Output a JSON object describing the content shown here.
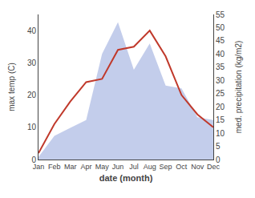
{
  "chart_data": {
    "type": "line",
    "xlabel": "date (month)",
    "ylabel": "max temp (C)",
    "y2label": "med. precipitation (kg/m2)",
    "categories": [
      "Jan",
      "Feb",
      "Mar",
      "Apr",
      "May",
      "Jun",
      "Jul",
      "Aug",
      "Sep",
      "Oct",
      "Nov",
      "Dec"
    ],
    "series": [
      {
        "type": "area",
        "axis": "y2",
        "color": "#b8c4e8",
        "values": [
          1,
          9,
          12,
          15,
          40,
          52,
          34,
          44,
          28,
          27,
          16,
          15
        ]
      },
      {
        "type": "line",
        "color": "#c0392b",
        "values": [
          2,
          11,
          18,
          24,
          25,
          34,
          35,
          40,
          32,
          20,
          14,
          10
        ]
      }
    ],
    "ylim": [
      0,
      45
    ],
    "yticks": [
      0,
      10,
      20,
      30,
      40
    ],
    "y2lim": [
      0,
      55
    ],
    "y2ticks": [
      0,
      5,
      10,
      15,
      20,
      25,
      30,
      35,
      40,
      45,
      50,
      55
    ],
    "grid": false
  }
}
